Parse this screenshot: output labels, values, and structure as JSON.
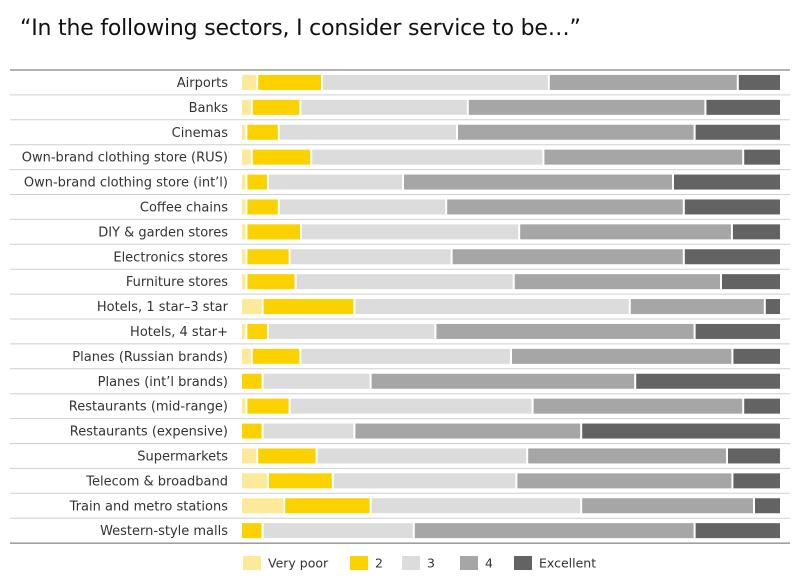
{
  "chart_data": {
    "type": "bar",
    "stacked": true,
    "percent_stacked": true,
    "orientation": "horizontal",
    "title": "“In the following sectors, I consider service to be…”",
    "categories": [
      "Airports",
      "Banks",
      "Cinemas",
      "Own-brand clothing store (RUS)",
      "Own-brand clothing store (int’l)",
      "Coffee chains",
      "DIY & garden stores",
      "Electronics stores",
      "Furniture stores",
      "Hotels, 1 star–3 star",
      "Hotels, 4 star+",
      "Planes (Russian brands)",
      "Planes (int’l brands)",
      "Restaurants (mid-range)",
      "Restaurants (expensive)",
      "Supermarkets",
      "Telecom & broadband",
      "Train and metro stations",
      "Western-style malls"
    ],
    "series": [
      {
        "name": "Very poor",
        "color": "#fde99a",
        "values": [
          3,
          2,
          1,
          2,
          1,
          1,
          1,
          1,
          1,
          4,
          1,
          2,
          0,
          1,
          0,
          3,
          5,
          8,
          0
        ]
      },
      {
        "name": "2",
        "color": "#fbd200",
        "values": [
          12,
          9,
          6,
          11,
          4,
          6,
          10,
          8,
          9,
          17,
          4,
          9,
          4,
          8,
          4,
          11,
          12,
          16,
          4
        ]
      },
      {
        "name": "3",
        "color": "#dcdcdc",
        "values": [
          42,
          31,
          33,
          43,
          25,
          31,
          40,
          30,
          40,
          51,
          31,
          39,
          20,
          45,
          17,
          39,
          34,
          39,
          28
        ]
      },
      {
        "name": "4",
        "color": "#a6a6a6",
        "values": [
          35,
          44,
          44,
          37,
          50,
          44,
          39,
          43,
          38,
          25,
          48,
          41,
          49,
          39,
          42,
          37,
          40,
          32,
          52
        ]
      },
      {
        "name": "Excellent",
        "color": "#636363",
        "values": [
          8,
          14,
          16,
          7,
          20,
          18,
          9,
          18,
          11,
          3,
          16,
          9,
          27,
          7,
          37,
          10,
          9,
          5,
          16
        ]
      }
    ]
  }
}
